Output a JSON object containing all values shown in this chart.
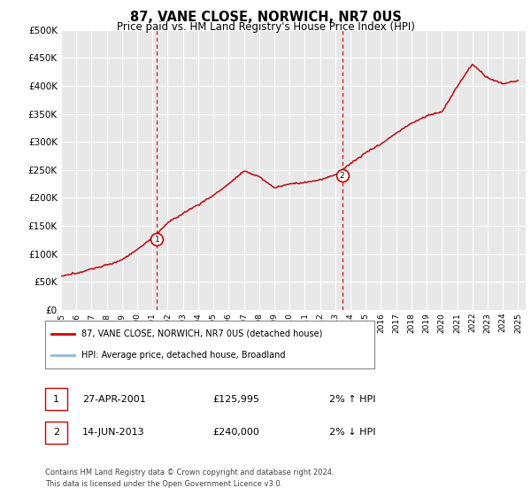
{
  "title": "87, VANE CLOSE, NORWICH, NR7 0US",
  "subtitle": "Price paid vs. HM Land Registry's House Price Index (HPI)",
  "legend_line1": "87, VANE CLOSE, NORWICH, NR7 0US (detached house)",
  "legend_line2": "HPI: Average price, detached house, Broadland",
  "annotation1_date": "27-APR-2001",
  "annotation1_price": "£125,995",
  "annotation1_hpi": "2% ↑ HPI",
  "annotation1_year": 2001.3,
  "annotation1_value": 125995,
  "annotation2_date": "14-JUN-2013",
  "annotation2_price": "£240,000",
  "annotation2_hpi": "2% ↓ HPI",
  "annotation2_year": 2013.45,
  "annotation2_value": 240000,
  "footnote1": "Contains HM Land Registry data © Crown copyright and database right 2024.",
  "footnote2": "This data is licensed under the Open Government Licence v3.0.",
  "hpi_color": "#8bbbd9",
  "price_color": "#cc0000",
  "bg_chart": "#e8e8e8",
  "background_color": "#ffffff",
  "grid_color": "#ffffff",
  "ylim": [
    0,
    500000
  ],
  "yticks": [
    0,
    50000,
    100000,
    150000,
    200000,
    250000,
    300000,
    350000,
    400000,
    450000,
    500000
  ],
  "xmin": 1995.0,
  "xmax": 2025.5,
  "hpi_knots_x": [
    1995,
    1996,
    1997,
    1998,
    1999,
    2000,
    2001,
    2002,
    2003,
    2004,
    2005,
    2006,
    2007,
    2008,
    2009,
    2010,
    2011,
    2012,
    2013,
    2014,
    2015,
    2016,
    2017,
    2018,
    2019,
    2020,
    2021,
    2022,
    2023,
    2024,
    2025
  ],
  "hpi_knots_y": [
    60000,
    65000,
    72000,
    80000,
    90000,
    108000,
    130000,
    155000,
    172000,
    188000,
    205000,
    225000,
    248000,
    238000,
    218000,
    225000,
    228000,
    232000,
    242000,
    262000,
    282000,
    298000,
    318000,
    335000,
    348000,
    355000,
    400000,
    440000,
    415000,
    405000,
    410000
  ]
}
